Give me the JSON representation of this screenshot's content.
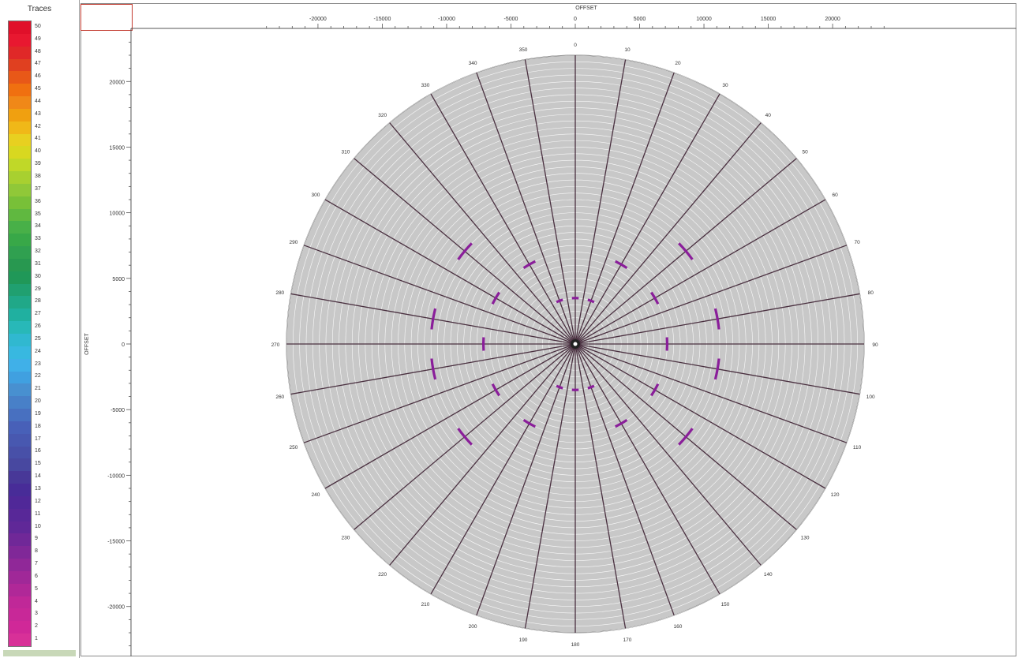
{
  "legend": {
    "title": "Traces",
    "values": [
      50,
      49,
      48,
      47,
      46,
      45,
      44,
      43,
      42,
      41,
      40,
      39,
      38,
      37,
      36,
      35,
      34,
      33,
      32,
      31,
      30,
      29,
      28,
      27,
      26,
      25,
      24,
      23,
      22,
      21,
      20,
      19,
      18,
      17,
      16,
      15,
      14,
      13,
      12,
      11,
      10,
      9,
      8,
      7,
      6,
      5,
      4,
      3,
      2,
      1
    ],
    "colors": [
      "#e0102a",
      "#e81830",
      "#e02828",
      "#e04020",
      "#e85818",
      "#f07010",
      "#f08818",
      "#f0a010",
      "#f0b818",
      "#e8d020",
      "#d8d820",
      "#c0d828",
      "#a8d030",
      "#90c838",
      "#78c038",
      "#60b840",
      "#48b048",
      "#38a848",
      "#30a050",
      "#289850",
      "#209858",
      "#20a070",
      "#20a888",
      "#20b0a0",
      "#28b8b8",
      "#30b8d0",
      "#38b8e0",
      "#40b0e8",
      "#40a0e0",
      "#4890d0",
      "#4880c8",
      "#4870c0",
      "#4860b8",
      "#4858b0",
      "#4850a8",
      "#4848a0",
      "#483898",
      "#482c98",
      "#502898",
      "#582898",
      "#602898",
      "#702898",
      "#802898",
      "#902898",
      "#a02898",
      "#b02898",
      "#c02898",
      "#c82898",
      "#d02898",
      "#d83098"
    ]
  },
  "chart_data": {
    "type": "polar",
    "title": "",
    "xlabel": "OFFSET",
    "ylabel": "OFFSET",
    "x_ticks": [
      -20000,
      -15000,
      -10000,
      -5000,
      0,
      5000,
      10000,
      15000,
      20000
    ],
    "y_ticks": [
      20000,
      15000,
      10000,
      5000,
      0,
      -5000,
      -10000,
      -15000,
      -20000
    ],
    "max_offset": 22000,
    "ring_step": 500,
    "azimuth_step_deg": 10,
    "azimuth_labels": [
      0,
      10,
      20,
      30,
      40,
      50,
      60,
      70,
      80,
      90,
      100,
      110,
      120,
      130,
      140,
      150,
      160,
      170,
      180,
      190,
      200,
      210,
      220,
      230,
      240,
      250,
      260,
      270,
      280,
      290,
      300,
      310,
      320,
      330,
      340,
      350
    ],
    "highlight_arcs": [
      {
        "radius": 3500,
        "azimuths": [
          0,
          20,
          340,
          160,
          180,
          200
        ]
      },
      {
        "radius": 7000,
        "azimuths": [
          30,
          60,
          90,
          120,
          150,
          210,
          240,
          270,
          300,
          330
        ]
      },
      {
        "radius": 11000,
        "azimuths": [
          50,
          80,
          100,
          130,
          230,
          260,
          280,
          310
        ]
      }
    ],
    "fill_color": "#c8c8c8",
    "line_color": "#4a3040",
    "highlight_color": "#8a1e9a"
  }
}
